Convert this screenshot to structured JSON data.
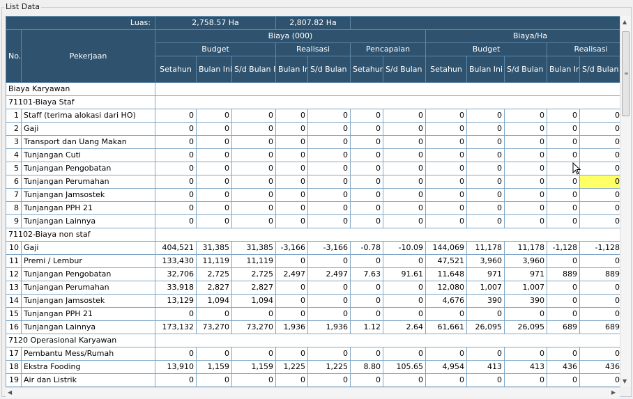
{
  "panel": {
    "title": "List Data"
  },
  "header": {
    "luas_label": "Luas:",
    "luas_budget": "2,758.57 Ha",
    "luas_realisasi": "2,807.82 Ha",
    "no": "No.",
    "pekerjaan": "Pekerjaan",
    "biaya000": "Biaya (000)",
    "biayaha": "Biaya/Ha",
    "budget": "Budget",
    "realisasi": "Realisasi",
    "pencapaian": "Pencapaian",
    "setahun": "Setahun",
    "bulan_ini": "Bulan Ini",
    "sd_bulan_ini": "S/d Bulan Ini"
  },
  "rows": [
    {
      "type": "section",
      "label": "Biaya Karyawan"
    },
    {
      "type": "section",
      "label": "71101-Biaya Staf"
    },
    {
      "type": "data",
      "no": "1",
      "name": "Staff (terima alokasi dari HO)",
      "v": [
        "0",
        "0",
        "0",
        "0",
        "0",
        "0",
        "0",
        "0",
        "0",
        "0",
        "0",
        "0"
      ]
    },
    {
      "type": "data",
      "no": "2",
      "name": "Gaji",
      "v": [
        "0",
        "0",
        "0",
        "0",
        "0",
        "0",
        "0",
        "0",
        "0",
        "0",
        "0",
        "0"
      ]
    },
    {
      "type": "data",
      "no": "3",
      "name": "Transport dan Uang Makan",
      "v": [
        "0",
        "0",
        "0",
        "0",
        "0",
        "0",
        "0",
        "0",
        "0",
        "0",
        "0",
        "0"
      ]
    },
    {
      "type": "data",
      "no": "4",
      "name": "Tunjangan Cuti",
      "v": [
        "0",
        "0",
        "0",
        "0",
        "0",
        "0",
        "0",
        "0",
        "0",
        "0",
        "0",
        "0"
      ]
    },
    {
      "type": "data",
      "no": "5",
      "name": "Tunjangan Pengobatan",
      "v": [
        "0",
        "0",
        "0",
        "0",
        "0",
        "0",
        "0",
        "0",
        "0",
        "0",
        "0",
        "0"
      ]
    },
    {
      "type": "data",
      "no": "6",
      "name": "Tunjangan Perumahan",
      "v": [
        "0",
        "0",
        "0",
        "0",
        "0",
        "0",
        "0",
        "0",
        "0",
        "0",
        "0",
        "0"
      ],
      "selected": true
    },
    {
      "type": "data",
      "no": "7",
      "name": "Tunjangan Jamsostek",
      "v": [
        "0",
        "0",
        "0",
        "0",
        "0",
        "0",
        "0",
        "0",
        "0",
        "0",
        "0",
        "0"
      ]
    },
    {
      "type": "data",
      "no": "8",
      "name": "Tunjangan PPH 21",
      "v": [
        "0",
        "0",
        "0",
        "0",
        "0",
        "0",
        "0",
        "0",
        "0",
        "0",
        "0",
        "0"
      ]
    },
    {
      "type": "data",
      "no": "9",
      "name": "Tunjangan Lainnya",
      "v": [
        "0",
        "0",
        "0",
        "0",
        "0",
        "0",
        "0",
        "0",
        "0",
        "0",
        "0",
        "0"
      ]
    },
    {
      "type": "section",
      "label": "71102-Biaya non staf"
    },
    {
      "type": "data",
      "no": "10",
      "name": "Gaji",
      "v": [
        "404,521",
        "31,385",
        "31,385",
        "-3,166",
        "-3,166",
        "-0.78",
        "-10.09",
        "144,069",
        "11,178",
        "11,178",
        "-1,128",
        "-1,128"
      ]
    },
    {
      "type": "data",
      "no": "11",
      "name": "Premi / Lembur",
      "v": [
        "133,430",
        "11,119",
        "11,119",
        "0",
        "0",
        "0",
        "0",
        "47,521",
        "3,960",
        "3,960",
        "0",
        "0"
      ]
    },
    {
      "type": "data",
      "no": "12",
      "name": "Tunjangan Pengobatan",
      "v": [
        "32,706",
        "2,725",
        "2,725",
        "2,497",
        "2,497",
        "7.63",
        "91.61",
        "11,648",
        "971",
        "971",
        "889",
        "889"
      ]
    },
    {
      "type": "data",
      "no": "13",
      "name": "Tunjangan Perumahan",
      "v": [
        "33,918",
        "2,827",
        "2,827",
        "0",
        "0",
        "0",
        "0",
        "12,080",
        "1,007",
        "1,007",
        "0",
        "0"
      ]
    },
    {
      "type": "data",
      "no": "14",
      "name": "Tunjangan Jamsostek",
      "v": [
        "13,129",
        "1,094",
        "1,094",
        "0",
        "0",
        "0",
        "0",
        "4,676",
        "390",
        "390",
        "0",
        "0"
      ]
    },
    {
      "type": "data",
      "no": "15",
      "name": "Tunjangan PPH 21",
      "v": [
        "0",
        "0",
        "0",
        "0",
        "0",
        "0",
        "0",
        "0",
        "0",
        "0",
        "0",
        "0"
      ]
    },
    {
      "type": "data",
      "no": "16",
      "name": "Tunjangan Lainnya",
      "v": [
        "173,132",
        "73,270",
        "73,270",
        "1,936",
        "1,936",
        "1.12",
        "2.64",
        "61,661",
        "26,095",
        "26,095",
        "689",
        "689"
      ]
    },
    {
      "type": "section",
      "label": "7120 Operasional Karyawan"
    },
    {
      "type": "data",
      "no": "17",
      "name": "Pembantu Mess/Rumah",
      "v": [
        "0",
        "0",
        "0",
        "0",
        "0",
        "0",
        "0",
        "0",
        "0",
        "0",
        "0",
        "0"
      ]
    },
    {
      "type": "data",
      "no": "18",
      "name": "Ekstra Fooding",
      "v": [
        "13,910",
        "1,159",
        "1,159",
        "1,225",
        "1,225",
        "8.80",
        "105.65",
        "4,954",
        "413",
        "413",
        "436",
        "436"
      ]
    },
    {
      "type": "data",
      "no": "19",
      "name": "Air dan Listrik",
      "v": [
        "0",
        "0",
        "0",
        "0",
        "0",
        "0",
        "0",
        "0",
        "0",
        "0",
        "0",
        "0"
      ]
    }
  ],
  "icons": {
    "scroll_up": "arrow-up-icon",
    "scroll_down": "arrow-down-icon",
    "scroll_left": "arrow-left-icon",
    "scroll_right": "arrow-right-icon",
    "cursor": "mouse-pointer-icon"
  },
  "colors": {
    "header_bg": "#2f536f",
    "grid_line": "#7ea6c6",
    "highlight": "#ffff66"
  }
}
